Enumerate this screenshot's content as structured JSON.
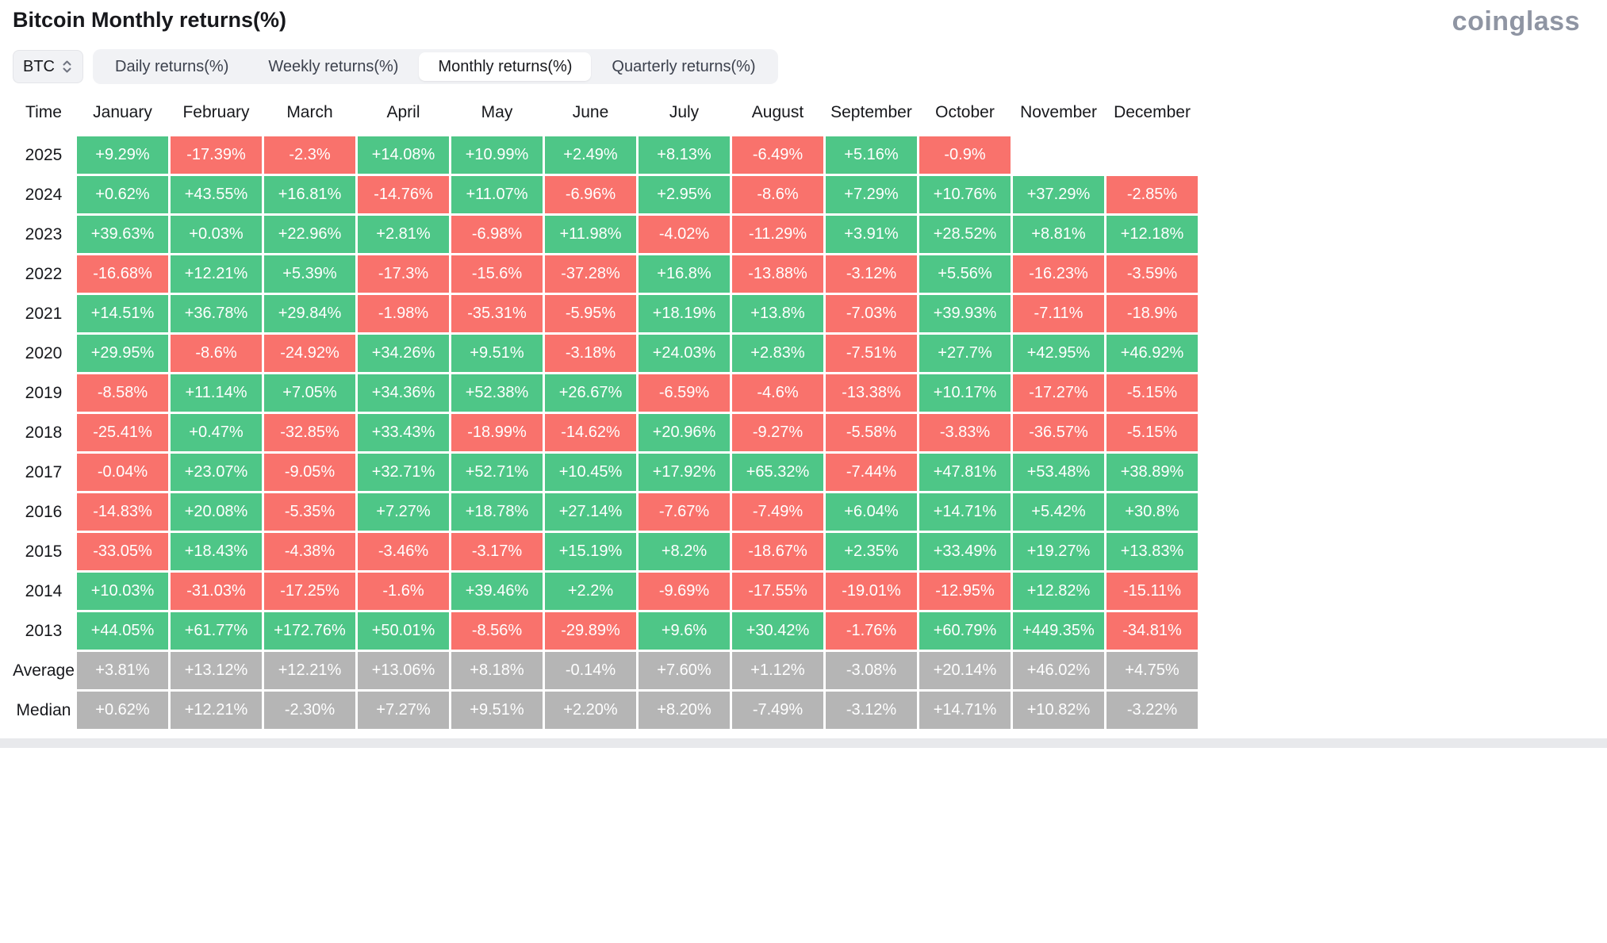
{
  "header": {
    "title": "Bitcoin Monthly returns(%)",
    "brand": "coinglass"
  },
  "controls": {
    "coin_selector": {
      "value": "BTC"
    },
    "tabs": [
      {
        "label": "Daily returns(%)",
        "active": false
      },
      {
        "label": "Weekly returns(%)",
        "active": false
      },
      {
        "label": "Monthly returns(%)",
        "active": true
      },
      {
        "label": "Quarterly returns(%)",
        "active": false
      }
    ]
  },
  "chart_data": {
    "type": "heatmap",
    "title": "Bitcoin Monthly returns(%)",
    "unit": "%",
    "columns": [
      "Time",
      "January",
      "February",
      "March",
      "April",
      "May",
      "June",
      "July",
      "August",
      "September",
      "October",
      "November",
      "December"
    ],
    "rows": [
      {
        "label": "2025",
        "summary": false,
        "values": [
          "+9.29%",
          "-17.39%",
          "-2.3%",
          "+14.08%",
          "+10.99%",
          "+2.49%",
          "+8.13%",
          "-6.49%",
          "+5.16%",
          "-0.9%",
          null,
          null
        ]
      },
      {
        "label": "2024",
        "summary": false,
        "values": [
          "+0.62%",
          "+43.55%",
          "+16.81%",
          "-14.76%",
          "+11.07%",
          "-6.96%",
          "+2.95%",
          "-8.6%",
          "+7.29%",
          "+10.76%",
          "+37.29%",
          "-2.85%"
        ]
      },
      {
        "label": "2023",
        "summary": false,
        "values": [
          "+39.63%",
          "+0.03%",
          "+22.96%",
          "+2.81%",
          "-6.98%",
          "+11.98%",
          "-4.02%",
          "-11.29%",
          "+3.91%",
          "+28.52%",
          "+8.81%",
          "+12.18%"
        ]
      },
      {
        "label": "2022",
        "summary": false,
        "values": [
          "-16.68%",
          "+12.21%",
          "+5.39%",
          "-17.3%",
          "-15.6%",
          "-37.28%",
          "+16.8%",
          "-13.88%",
          "-3.12%",
          "+5.56%",
          "-16.23%",
          "-3.59%"
        ]
      },
      {
        "label": "2021",
        "summary": false,
        "values": [
          "+14.51%",
          "+36.78%",
          "+29.84%",
          "-1.98%",
          "-35.31%",
          "-5.95%",
          "+18.19%",
          "+13.8%",
          "-7.03%",
          "+39.93%",
          "-7.11%",
          "-18.9%"
        ]
      },
      {
        "label": "2020",
        "summary": false,
        "values": [
          "+29.95%",
          "-8.6%",
          "-24.92%",
          "+34.26%",
          "+9.51%",
          "-3.18%",
          "+24.03%",
          "+2.83%",
          "-7.51%",
          "+27.7%",
          "+42.95%",
          "+46.92%"
        ]
      },
      {
        "label": "2019",
        "summary": false,
        "values": [
          "-8.58%",
          "+11.14%",
          "+7.05%",
          "+34.36%",
          "+52.38%",
          "+26.67%",
          "-6.59%",
          "-4.6%",
          "-13.38%",
          "+10.17%",
          "-17.27%",
          "-5.15%"
        ]
      },
      {
        "label": "2018",
        "summary": false,
        "values": [
          "-25.41%",
          "+0.47%",
          "-32.85%",
          "+33.43%",
          "-18.99%",
          "-14.62%",
          "+20.96%",
          "-9.27%",
          "-5.58%",
          "-3.83%",
          "-36.57%",
          "-5.15%"
        ]
      },
      {
        "label": "2017",
        "summary": false,
        "values": [
          "-0.04%",
          "+23.07%",
          "-9.05%",
          "+32.71%",
          "+52.71%",
          "+10.45%",
          "+17.92%",
          "+65.32%",
          "-7.44%",
          "+47.81%",
          "+53.48%",
          "+38.89%"
        ]
      },
      {
        "label": "2016",
        "summary": false,
        "values": [
          "-14.83%",
          "+20.08%",
          "-5.35%",
          "+7.27%",
          "+18.78%",
          "+27.14%",
          "-7.67%",
          "-7.49%",
          "+6.04%",
          "+14.71%",
          "+5.42%",
          "+30.8%"
        ]
      },
      {
        "label": "2015",
        "summary": false,
        "values": [
          "-33.05%",
          "+18.43%",
          "-4.38%",
          "-3.46%",
          "-3.17%",
          "+15.19%",
          "+8.2%",
          "-18.67%",
          "+2.35%",
          "+33.49%",
          "+19.27%",
          "+13.83%"
        ]
      },
      {
        "label": "2014",
        "summary": false,
        "values": [
          "+10.03%",
          "-31.03%",
          "-17.25%",
          "-1.6%",
          "+39.46%",
          "+2.2%",
          "-9.69%",
          "-17.55%",
          "-19.01%",
          "-12.95%",
          "+12.82%",
          "-15.11%"
        ]
      },
      {
        "label": "2013",
        "summary": false,
        "values": [
          "+44.05%",
          "+61.77%",
          "+172.76%",
          "+50.01%",
          "-8.56%",
          "-29.89%",
          "+9.6%",
          "+30.42%",
          "-1.76%",
          "+60.79%",
          "+449.35%",
          "-34.81%"
        ]
      },
      {
        "label": "Average",
        "summary": true,
        "values": [
          "+3.81%",
          "+13.12%",
          "+12.21%",
          "+13.06%",
          "+8.18%",
          "-0.14%",
          "+7.60%",
          "+1.12%",
          "-3.08%",
          "+20.14%",
          "+46.02%",
          "+4.75%"
        ]
      },
      {
        "label": "Median",
        "summary": true,
        "values": [
          "+0.62%",
          "+12.21%",
          "-2.30%",
          "+7.27%",
          "+9.51%",
          "+2.20%",
          "+8.20%",
          "-7.49%",
          "-3.12%",
          "+14.71%",
          "+10.82%",
          "-3.22%"
        ]
      }
    ],
    "colors": {
      "positive": "#4ec687",
      "negative": "#f9726c",
      "summary": "#b5b5b5"
    }
  }
}
